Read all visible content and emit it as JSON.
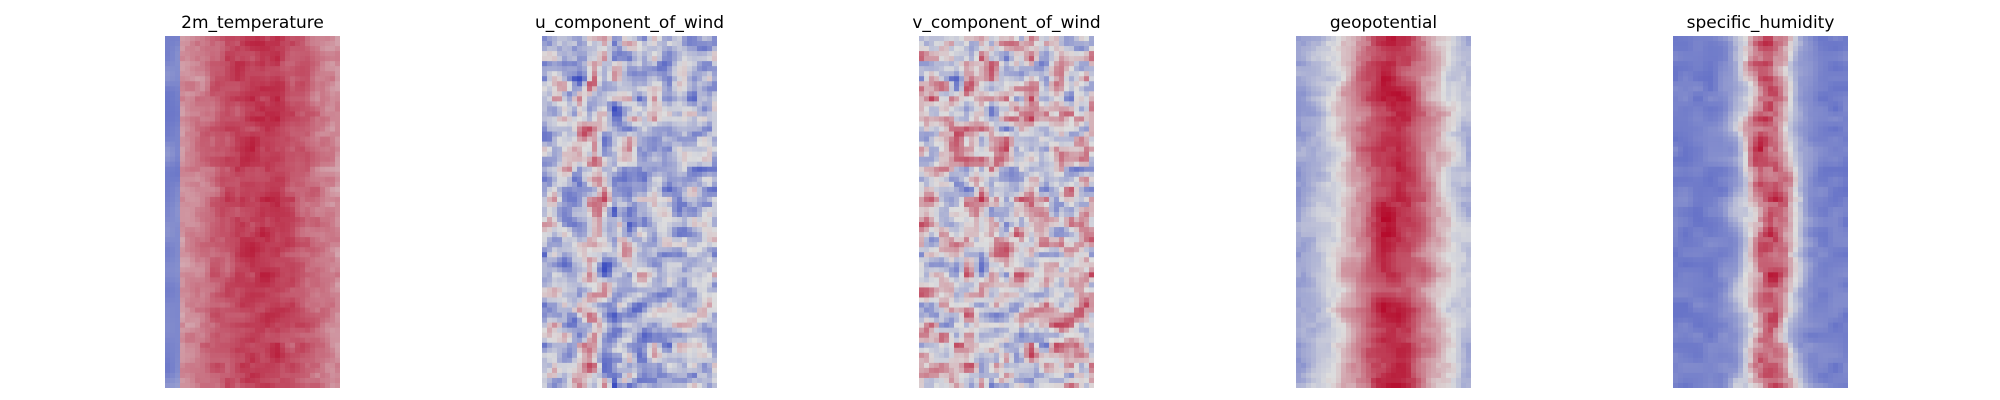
{
  "figure": {
    "panels": [
      {
        "title": "2m_temperature",
        "colormap": "coolwarm"
      },
      {
        "title": "u_component_of_wind",
        "colormap": "coolwarm"
      },
      {
        "title": "v_component_of_wind",
        "colormap": "coolwarm"
      },
      {
        "title": "geopotential",
        "colormap": "coolwarm"
      },
      {
        "title": "specific_humidity",
        "colormap": "coolwarm"
      }
    ]
  },
  "colors": {
    "cold": "#3b4cc0",
    "neutral": "#dddddd",
    "warm": "#b40426",
    "background": "#ffffff"
  }
}
